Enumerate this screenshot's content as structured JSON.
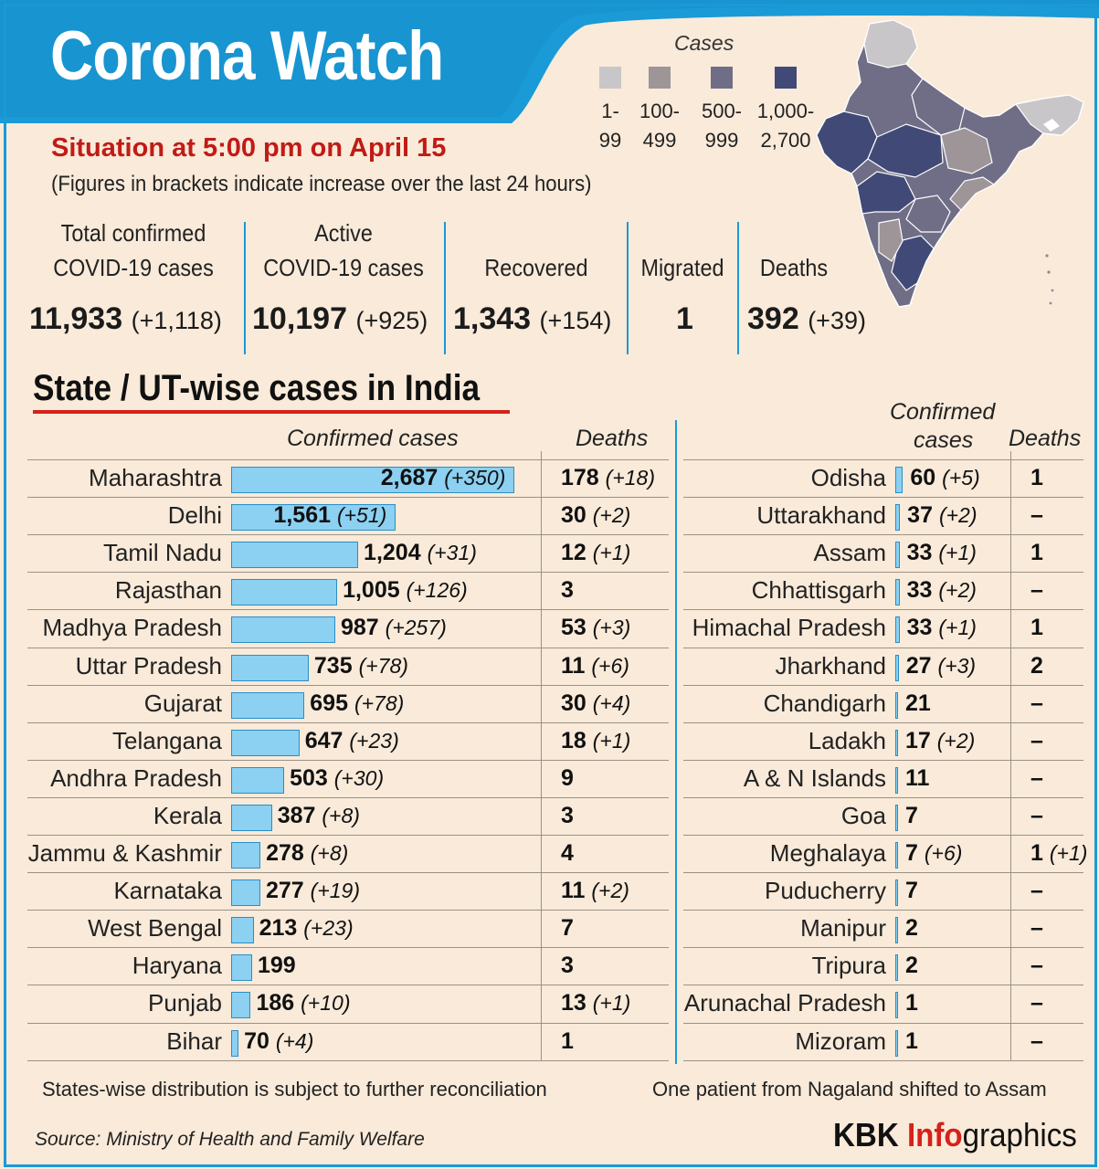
{
  "header": {
    "title": "Corona Watch",
    "situation": "Situation at 5:00 pm on April 15",
    "note": "(Figures in brackets indicate increase over the last 24 hours)"
  },
  "legend": {
    "title": "Cases",
    "items": [
      {
        "line1": "1-",
        "line2": "99",
        "color": "#c8c6c8"
      },
      {
        "line1": "100-",
        "line2": "499",
        "color": "#9e9599"
      },
      {
        "line1": "500-",
        "line2": "999",
        "color": "#6f6e86"
      },
      {
        "line1": "1,000-",
        "line2": "2,700",
        "color": "#414a77"
      }
    ]
  },
  "stats": [
    {
      "label1": "Total confirmed",
      "label2": "COVID-19 cases",
      "value": "11,933",
      "inc": "(+1,118)"
    },
    {
      "label1": "Active",
      "label2": "COVID-19 cases",
      "value": "10,197",
      "inc": "(+925)"
    },
    {
      "label1": "",
      "label2": "Recovered",
      "value": "1,343",
      "inc": "(+154)"
    },
    {
      "label1": "",
      "label2": "Migrated",
      "value": "1",
      "inc": ""
    },
    {
      "label1": "",
      "label2": "Deaths",
      "value": "392",
      "inc": "(+39)"
    }
  ],
  "section_title": "State / UT-wise cases in India",
  "left_table": {
    "col_confirmed": "Confirmed cases",
    "col_deaths": "Deaths"
  },
  "right_table": {
    "col_confirmed_1": "Confirmed",
    "col_confirmed_2": "cases",
    "col_deaths": "Deaths"
  },
  "chart_data": {
    "type": "bar",
    "title": "State / UT-wise cases in India",
    "xlabel": "Confirmed cases",
    "ylabel": "",
    "series": [
      {
        "name": "Confirmed cases",
        "values": [
          2687,
          1561,
          1204,
          1005,
          987,
          735,
          695,
          647,
          503,
          387,
          278,
          277,
          213,
          199,
          186,
          70,
          60,
          37,
          33,
          33,
          33,
          27,
          21,
          17,
          11,
          7,
          7,
          7,
          2,
          2,
          1,
          1
        ]
      },
      {
        "name": "Deaths",
        "values": [
          178,
          30,
          12,
          3,
          53,
          11,
          30,
          18,
          9,
          3,
          4,
          11,
          7,
          3,
          13,
          1,
          1,
          0,
          1,
          0,
          1,
          2,
          0,
          0,
          0,
          0,
          1,
          0,
          0,
          0,
          0,
          0
        ]
      }
    ],
    "rows_left": [
      {
        "name": "Maharashtra",
        "cases": 2687,
        "cases_text": "2,687",
        "cases_inc": "(+350)",
        "deaths": "178",
        "deaths_inc": "(+18)"
      },
      {
        "name": "Delhi",
        "cases": 1561,
        "cases_text": "1,561",
        "cases_inc": "(+51)",
        "deaths": "30",
        "deaths_inc": "(+2)"
      },
      {
        "name": "Tamil Nadu",
        "cases": 1204,
        "cases_text": "1,204",
        "cases_inc": "(+31)",
        "deaths": "12",
        "deaths_inc": "(+1)"
      },
      {
        "name": "Rajasthan",
        "cases": 1005,
        "cases_text": "1,005",
        "cases_inc": "(+126)",
        "deaths": "3",
        "deaths_inc": ""
      },
      {
        "name": "Madhya Pradesh",
        "cases": 987,
        "cases_text": "987",
        "cases_inc": "(+257)",
        "deaths": "53",
        "deaths_inc": "(+3)"
      },
      {
        "name": "Uttar Pradesh",
        "cases": 735,
        "cases_text": "735",
        "cases_inc": "(+78)",
        "deaths": "11",
        "deaths_inc": "(+6)"
      },
      {
        "name": "Gujarat",
        "cases": 695,
        "cases_text": "695",
        "cases_inc": "(+78)",
        "deaths": "30",
        "deaths_inc": "(+4)"
      },
      {
        "name": "Telangana",
        "cases": 647,
        "cases_text": "647",
        "cases_inc": "(+23)",
        "deaths": "18",
        "deaths_inc": "(+1)"
      },
      {
        "name": "Andhra Pradesh",
        "cases": 503,
        "cases_text": "503",
        "cases_inc": "(+30)",
        "deaths": "9",
        "deaths_inc": ""
      },
      {
        "name": "Kerala",
        "cases": 387,
        "cases_text": "387",
        "cases_inc": "(+8)",
        "deaths": "3",
        "deaths_inc": ""
      },
      {
        "name": "Jammu & Kashmir",
        "cases": 278,
        "cases_text": "278",
        "cases_inc": "(+8)",
        "deaths": "4",
        "deaths_inc": ""
      },
      {
        "name": "Karnataka",
        "cases": 277,
        "cases_text": "277",
        "cases_inc": "(+19)",
        "deaths": "11",
        "deaths_inc": "(+2)"
      },
      {
        "name": "West Bengal",
        "cases": 213,
        "cases_text": "213",
        "cases_inc": "(+23)",
        "deaths": "7",
        "deaths_inc": ""
      },
      {
        "name": "Haryana",
        "cases": 199,
        "cases_text": "199",
        "cases_inc": "",
        "deaths": "3",
        "deaths_inc": ""
      },
      {
        "name": "Punjab",
        "cases": 186,
        "cases_text": "186",
        "cases_inc": "(+10)",
        "deaths": "13",
        "deaths_inc": "(+1)"
      },
      {
        "name": "Bihar",
        "cases": 70,
        "cases_text": "70",
        "cases_inc": "(+4)",
        "deaths": "1",
        "deaths_inc": ""
      }
    ],
    "rows_right": [
      {
        "name": "Odisha",
        "cases": 60,
        "cases_text": "60",
        "cases_inc": "(+5)",
        "deaths": "1",
        "deaths_inc": ""
      },
      {
        "name": "Uttarakhand",
        "cases": 37,
        "cases_text": "37",
        "cases_inc": "(+2)",
        "deaths": "–",
        "deaths_inc": ""
      },
      {
        "name": "Assam",
        "cases": 33,
        "cases_text": "33",
        "cases_inc": "(+1)",
        "deaths": "1",
        "deaths_inc": ""
      },
      {
        "name": "Chhattisgarh",
        "cases": 33,
        "cases_text": "33",
        "cases_inc": "(+2)",
        "deaths": "–",
        "deaths_inc": ""
      },
      {
        "name": "Himachal Pradesh",
        "cases": 33,
        "cases_text": "33",
        "cases_inc": "(+1)",
        "deaths": "1",
        "deaths_inc": ""
      },
      {
        "name": "Jharkhand",
        "cases": 27,
        "cases_text": "27",
        "cases_inc": "(+3)",
        "deaths": "2",
        "deaths_inc": ""
      },
      {
        "name": "Chandigarh",
        "cases": 21,
        "cases_text": "21",
        "cases_inc": "",
        "deaths": "–",
        "deaths_inc": ""
      },
      {
        "name": "Ladakh",
        "cases": 17,
        "cases_text": "17",
        "cases_inc": "(+2)",
        "deaths": "–",
        "deaths_inc": ""
      },
      {
        "name": "A & N Islands",
        "cases": 11,
        "cases_text": "11",
        "cases_inc": "",
        "deaths": "–",
        "deaths_inc": ""
      },
      {
        "name": "Goa",
        "cases": 7,
        "cases_text": "7",
        "cases_inc": "",
        "deaths": "–",
        "deaths_inc": ""
      },
      {
        "name": "Meghalaya",
        "cases": 7,
        "cases_text": "7",
        "cases_inc": "(+6)",
        "deaths": "1",
        "deaths_inc": "(+1)"
      },
      {
        "name": "Puducherry",
        "cases": 7,
        "cases_text": "7",
        "cases_inc": "",
        "deaths": "–",
        "deaths_inc": ""
      },
      {
        "name": "Manipur",
        "cases": 2,
        "cases_text": "2",
        "cases_inc": "",
        "deaths": "–",
        "deaths_inc": ""
      },
      {
        "name": "Tripura",
        "cases": 2,
        "cases_text": "2",
        "cases_inc": "",
        "deaths": "–",
        "deaths_inc": ""
      },
      {
        "name": "Arunachal Pradesh",
        "cases": 1,
        "cases_text": "1",
        "cases_inc": "",
        "deaths": "–",
        "deaths_inc": ""
      },
      {
        "name": "Mizoram",
        "cases": 1,
        "cases_text": "1",
        "cases_inc": "",
        "deaths": "–",
        "deaths_inc": ""
      }
    ]
  },
  "footer": {
    "note_left": "States-wise distribution is subject to further reconciliation",
    "note_right": "One patient from Nagaland shifted to Assam",
    "source": "Source: Ministry of Health and Family Welfare",
    "brand_1": "KBK ",
    "brand_2": "Info",
    "brand_3": "graphics"
  },
  "colors": {
    "accent": "#1a9ad6",
    "bar": "#8cd0f2",
    "title_red": "#c11b17",
    "background": "#f9ead9"
  }
}
